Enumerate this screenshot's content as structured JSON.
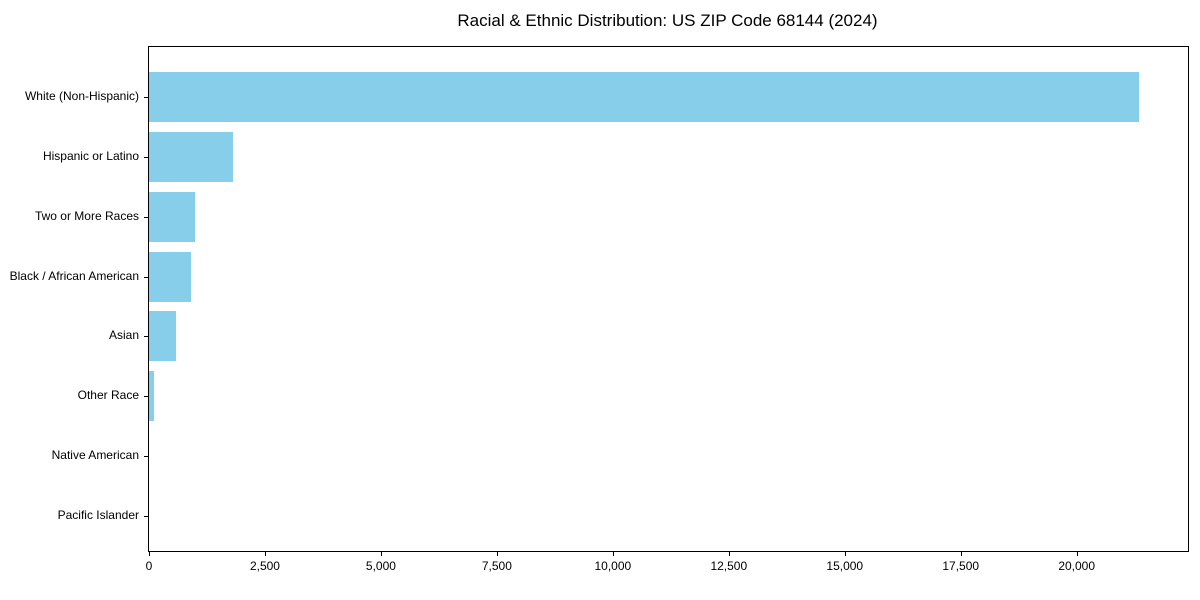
{
  "chart_data": {
    "type": "bar",
    "orientation": "horizontal",
    "title": "Racial & Ethnic Distribution: US ZIP Code 68144 (2024)",
    "xlabel": "",
    "ylabel": "",
    "categories": [
      "White (Non-Hispanic)",
      "Hispanic or Latino",
      "Two or More Races",
      "Black / African American",
      "Asian",
      "Other Race",
      "Native American",
      "Pacific Islander"
    ],
    "values": [
      21350,
      1820,
      1000,
      900,
      590,
      110,
      0,
      0
    ],
    "xlim": [
      0,
      22400
    ],
    "x_ticks": [
      0,
      2500,
      5000,
      7500,
      10000,
      12500,
      15000,
      17500,
      20000
    ],
    "x_tick_labels": [
      "0",
      "2,500",
      "5,000",
      "7,500",
      "10,000",
      "12,500",
      "15,000",
      "17,500",
      "20,000"
    ],
    "grid": false,
    "legend": false,
    "bar_color": "#87CEEB",
    "axis_color": "#000000",
    "text_color": "#000000",
    "background_color": "#FFFFFF"
  }
}
